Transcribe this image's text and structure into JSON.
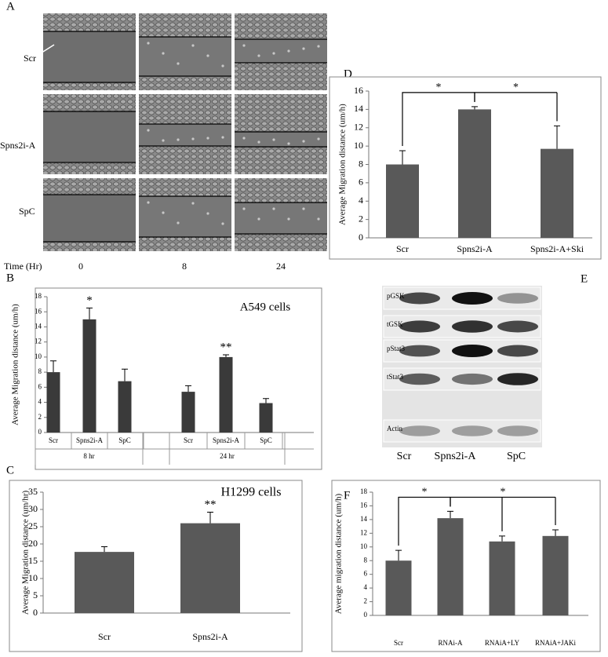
{
  "panel_letters": [
    "A",
    "B",
    "C",
    "D",
    "E",
    "F"
  ],
  "panel_a": {
    "row_labels": [
      "Scr",
      "Spns2i-A",
      "SpC"
    ],
    "time_label": "Time (Hr)",
    "time_points": [
      "0",
      "8",
      "24"
    ]
  },
  "panel_e": {
    "row_labels": [
      "pGSK",
      "tGSK",
      "pStat3",
      "tStat3",
      "Actin"
    ],
    "lane_labels": [
      "Scr",
      "Spns2i-A",
      "SpC"
    ]
  },
  "chart_data": [
    {
      "type": "bar",
      "title": "A549 cells",
      "y_label": "Average Migration distance (um/h)",
      "color": "#3a3a3a",
      "ylim": [
        0,
        18
      ],
      "yticks": [
        0,
        2,
        4,
        6,
        8,
        10,
        12,
        14,
        16,
        18
      ],
      "groups": [
        {
          "name": "8 hr",
          "categories": [
            "Scr",
            "Spns2i-A",
            "SpC"
          ],
          "values": [
            8,
            15,
            6.8
          ],
          "errors": [
            1.5,
            1.5,
            1.6
          ],
          "significance": [
            null,
            "*",
            null
          ]
        },
        {
          "name": "24 hr",
          "categories": [
            "Scr",
            "Spns2i-A",
            "SpC"
          ],
          "values": [
            5.4,
            10,
            3.9
          ],
          "errors": [
            0.8,
            0.3,
            0.6
          ],
          "significance": [
            null,
            "**",
            null
          ]
        }
      ]
    },
    {
      "type": "bar",
      "title": "H1299 cells",
      "y_label": "Average Migration distance (um/hr)",
      "color": "#595959",
      "ylim": [
        0,
        35
      ],
      "yticks": [
        0,
        5,
        10,
        15,
        20,
        25,
        30,
        35
      ],
      "categories": [
        "Scr",
        "Spns2i-A"
      ],
      "values": [
        17.7,
        26
      ],
      "errors": [
        1.5,
        3.2
      ],
      "significance": [
        null,
        "**"
      ]
    },
    {
      "type": "bar",
      "y_label": "Average Migration distance (um/h)",
      "color": "#595959",
      "ylim": [
        0,
        16
      ],
      "yticks": [
        0,
        2,
        4,
        6,
        8,
        10,
        12,
        14,
        16
      ],
      "categories": [
        "Scr",
        "Spns2i-A",
        "Spns2i-A+Ski"
      ],
      "values": [
        8,
        14,
        9.7
      ],
      "errors": [
        1.5,
        0.3,
        2.5
      ],
      "comparisons": [
        {
          "from": "Scr",
          "to": [
            "Spns2i-A"
          ],
          "label": "*"
        },
        {
          "from": "Spns2i-A",
          "to": [
            "Spns2i-A+Ski"
          ],
          "label": "*"
        }
      ]
    },
    {
      "type": "bar",
      "y_label": "Average migration distance (um/h)",
      "color": "#595959",
      "ylim": [
        0,
        18
      ],
      "yticks": [
        0,
        2,
        4,
        6,
        8,
        10,
        12,
        14,
        16,
        18
      ],
      "categories": [
        "Scr",
        "RNAi-A",
        "RNAiA+LY",
        "RNAiA+JAKi"
      ],
      "values": [
        8,
        14.2,
        10.8,
        11.6
      ],
      "errors": [
        1.5,
        1.0,
        0.8,
        0.9
      ],
      "comparisons": [
        {
          "from": "Scr",
          "to": [
            "RNAi-A"
          ],
          "label": "*"
        },
        {
          "from": "RNAi-A",
          "to": [
            "RNAiA+LY",
            "RNAiA+JAKi"
          ],
          "label": "*"
        }
      ]
    }
  ]
}
